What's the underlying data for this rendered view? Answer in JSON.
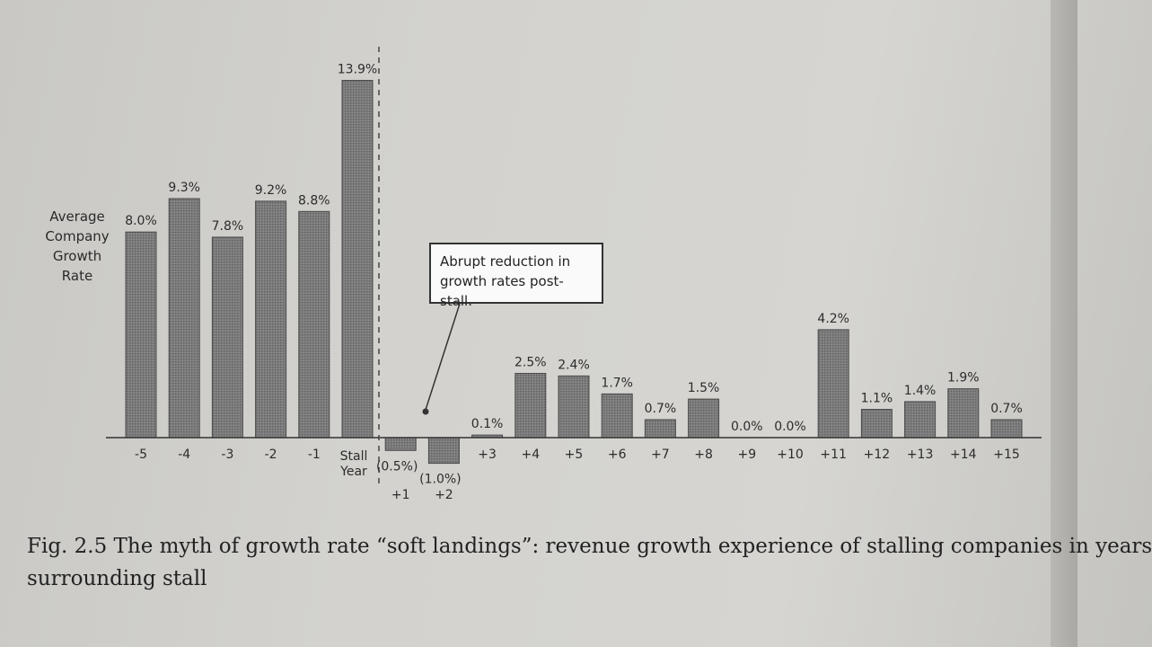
{
  "chart_data": {
    "type": "bar",
    "categories": [
      "-5",
      "-4",
      "-3",
      "-2",
      "-1",
      "Stall Year",
      "+1",
      "+2",
      "+3",
      "+4",
      "+5",
      "+6",
      "+7",
      "+8",
      "+9",
      "+10",
      "+11",
      "+12",
      "+13",
      "+14",
      "+15"
    ],
    "values": [
      8.0,
      9.3,
      7.8,
      9.2,
      8.8,
      13.9,
      -0.5,
      -1.0,
      0.1,
      2.5,
      2.4,
      1.7,
      0.7,
      1.5,
      0.0,
      0.0,
      4.2,
      1.1,
      1.4,
      1.9,
      0.7
    ],
    "value_labels": [
      "8.0%",
      "9.3%",
      "7.8%",
      "9.2%",
      "8.8%",
      "13.9%",
      "(0.5%)",
      "(1.0%)",
      "0.1%",
      "2.5%",
      "2.4%",
      "1.7%",
      "0.7%",
      "1.5%",
      "0.0%",
      "0.0%",
      "4.2%",
      "1.1%",
      "1.4%",
      "1.9%",
      "0.7%"
    ],
    "ylabel_lines": [
      "Average",
      "Company",
      "Growth",
      "Rate"
    ],
    "stall_year_label_lines": [
      "Stall",
      "Year"
    ],
    "ylim": [
      -1.0,
      13.9
    ],
    "grid": false,
    "bar_color": "#7d7d7d",
    "annotation_lines": [
      "Abrupt reduction in",
      "growth rates post-stall."
    ],
    "caption_lines": [
      "Fig. 2.5 The myth of growth rate “soft landings”: revenue growth experience of stalling companies in years",
      "surrounding stall"
    ]
  }
}
